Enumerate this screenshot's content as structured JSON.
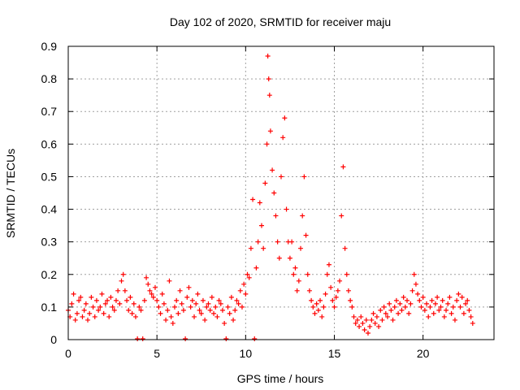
{
  "chart_data": {
    "type": "scatter",
    "title": "Day 102 of 2020, SRMTID for receiver maju",
    "xlabel": "GPS time / hours",
    "ylabel": "SRMTID / TECUs",
    "xlim": [
      0,
      24
    ],
    "ylim": [
      0,
      0.9
    ],
    "x_ticks": [
      0,
      5,
      10,
      15,
      20
    ],
    "x_tick_labels": [
      "0",
      "5",
      "10",
      "15",
      "20"
    ],
    "y_ticks": [
      0,
      0.1,
      0.2,
      0.3,
      0.4,
      0.5,
      0.6,
      0.7,
      0.8,
      0.9
    ],
    "y_tick_labels": [
      "0",
      "0.1",
      "0.2",
      "0.3",
      "0.4",
      "0.5",
      "0.6",
      "0.7",
      "0.8",
      "0.9"
    ],
    "grid": true,
    "marker": "plus",
    "color": "#ff0000",
    "series": [
      {
        "name": "SRMTID",
        "points": [
          [
            0.0,
            0.09
          ],
          [
            0.1,
            0.07
          ],
          [
            0.2,
            0.11
          ],
          [
            0.3,
            0.14
          ],
          [
            0.4,
            0.06
          ],
          [
            0.5,
            0.08
          ],
          [
            0.6,
            0.12
          ],
          [
            0.7,
            0.13
          ],
          [
            0.8,
            0.07
          ],
          [
            0.9,
            0.09
          ],
          [
            1.0,
            0.11
          ],
          [
            1.1,
            0.06
          ],
          [
            1.2,
            0.08
          ],
          [
            1.3,
            0.13
          ],
          [
            1.4,
            0.1
          ],
          [
            1.5,
            0.07
          ],
          [
            1.6,
            0.12
          ],
          [
            1.7,
            0.09
          ],
          [
            1.8,
            0.1
          ],
          [
            1.9,
            0.14
          ],
          [
            2.0,
            0.08
          ],
          [
            2.1,
            0.11
          ],
          [
            2.2,
            0.12
          ],
          [
            2.3,
            0.07
          ],
          [
            2.4,
            0.13
          ],
          [
            2.5,
            0.1
          ],
          [
            2.6,
            0.09
          ],
          [
            2.7,
            0.12
          ],
          [
            2.8,
            0.15
          ],
          [
            2.9,
            0.11
          ],
          [
            3.0,
            0.18
          ],
          [
            3.1,
            0.2
          ],
          [
            3.2,
            0.15
          ],
          [
            3.3,
            0.12
          ],
          [
            3.4,
            0.09
          ],
          [
            3.5,
            0.13
          ],
          [
            3.6,
            0.08
          ],
          [
            3.7,
            0.11
          ],
          [
            3.8,
            0.07
          ],
          [
            3.9,
            0.0
          ],
          [
            4.0,
            0.1
          ],
          [
            4.1,
            0.09
          ],
          [
            4.2,
            0.0
          ],
          [
            4.3,
            0.12
          ],
          [
            4.4,
            0.19
          ],
          [
            4.5,
            0.17
          ],
          [
            4.6,
            0.15
          ],
          [
            4.7,
            0.14
          ],
          [
            4.8,
            0.13
          ],
          [
            4.9,
            0.16
          ],
          [
            5.0,
            0.12
          ],
          [
            5.1,
            0.1
          ],
          [
            5.2,
            0.08
          ],
          [
            5.3,
            0.14
          ],
          [
            5.4,
            0.11
          ],
          [
            5.5,
            0.06
          ],
          [
            5.6,
            0.09
          ],
          [
            5.7,
            0.18
          ],
          [
            5.8,
            0.07
          ],
          [
            5.9,
            0.05
          ],
          [
            6.0,
            0.1
          ],
          [
            6.1,
            0.12
          ],
          [
            6.2,
            0.08
          ],
          [
            6.3,
            0.15
          ],
          [
            6.4,
            0.11
          ],
          [
            6.5,
            0.09
          ],
          [
            6.6,
            0.0
          ],
          [
            6.7,
            0.13
          ],
          [
            6.8,
            0.16
          ],
          [
            6.9,
            0.1
          ],
          [
            7.0,
            0.12
          ],
          [
            7.1,
            0.07
          ],
          [
            7.2,
            0.11
          ],
          [
            7.3,
            0.14
          ],
          [
            7.4,
            0.09
          ],
          [
            7.5,
            0.08
          ],
          [
            7.6,
            0.12
          ],
          [
            7.7,
            0.06
          ],
          [
            7.8,
            0.1
          ],
          [
            7.9,
            0.11
          ],
          [
            8.0,
            0.09
          ],
          [
            8.1,
            0.13
          ],
          [
            8.2,
            0.08
          ],
          [
            8.3,
            0.1
          ],
          [
            8.4,
            0.07
          ],
          [
            8.5,
            0.12
          ],
          [
            8.6,
            0.11
          ],
          [
            8.7,
            0.09
          ],
          [
            8.8,
            0.05
          ],
          [
            8.9,
            0.0
          ],
          [
            9.0,
            0.1
          ],
          [
            9.1,
            0.08
          ],
          [
            9.2,
            0.13
          ],
          [
            9.3,
            0.06
          ],
          [
            9.4,
            0.09
          ],
          [
            9.5,
            0.12
          ],
          [
            9.6,
            0.11
          ],
          [
            9.7,
            0.15
          ],
          [
            9.8,
            0.1
          ],
          [
            9.9,
            0.17
          ],
          [
            10.0,
            0.14
          ],
          [
            10.1,
            0.2
          ],
          [
            10.2,
            0.19
          ],
          [
            10.3,
            0.28
          ],
          [
            10.4,
            0.43
          ],
          [
            10.5,
            0.0
          ],
          [
            10.6,
            0.22
          ],
          [
            10.7,
            0.3
          ],
          [
            10.8,
            0.42
          ],
          [
            10.9,
            0.35
          ],
          [
            11.0,
            0.28
          ],
          [
            11.1,
            0.48
          ],
          [
            11.2,
            0.6
          ],
          [
            11.25,
            0.87
          ],
          [
            11.3,
            0.8
          ],
          [
            11.35,
            0.75
          ],
          [
            11.4,
            0.64
          ],
          [
            11.5,
            0.52
          ],
          [
            11.6,
            0.45
          ],
          [
            11.7,
            0.38
          ],
          [
            11.8,
            0.3
          ],
          [
            11.9,
            0.25
          ],
          [
            12.0,
            0.5
          ],
          [
            12.1,
            0.62
          ],
          [
            12.2,
            0.68
          ],
          [
            12.3,
            0.4
          ],
          [
            12.4,
            0.3
          ],
          [
            12.5,
            0.25
          ],
          [
            12.6,
            0.3
          ],
          [
            12.7,
            0.2
          ],
          [
            12.8,
            0.22
          ],
          [
            12.9,
            0.15
          ],
          [
            13.0,
            0.18
          ],
          [
            13.1,
            0.28
          ],
          [
            13.2,
            0.38
          ],
          [
            13.3,
            0.5
          ],
          [
            13.4,
            0.32
          ],
          [
            13.5,
            0.2
          ],
          [
            13.6,
            0.15
          ],
          [
            13.7,
            0.12
          ],
          [
            13.8,
            0.1
          ],
          [
            13.9,
            0.08
          ],
          [
            14.0,
            0.11
          ],
          [
            14.1,
            0.09
          ],
          [
            14.2,
            0.12
          ],
          [
            14.3,
            0.07
          ],
          [
            14.4,
            0.1
          ],
          [
            14.5,
            0.14
          ],
          [
            14.6,
            0.2
          ],
          [
            14.7,
            0.23
          ],
          [
            14.8,
            0.16
          ],
          [
            14.9,
            0.12
          ],
          [
            15.0,
            0.1
          ],
          [
            15.1,
            0.13
          ],
          [
            15.2,
            0.15
          ],
          [
            15.3,
            0.18
          ],
          [
            15.4,
            0.38
          ],
          [
            15.5,
            0.53
          ],
          [
            15.6,
            0.28
          ],
          [
            15.7,
            0.2
          ],
          [
            15.8,
            0.15
          ],
          [
            15.9,
            0.12
          ],
          [
            16.0,
            0.1
          ],
          [
            16.1,
            0.07
          ],
          [
            16.2,
            0.05
          ],
          [
            16.3,
            0.06
          ],
          [
            16.4,
            0.04
          ],
          [
            16.5,
            0.07
          ],
          [
            16.6,
            0.05
          ],
          [
            16.7,
            0.03
          ],
          [
            16.8,
            0.06
          ],
          [
            16.9,
            0.02
          ],
          [
            17.0,
            0.04
          ],
          [
            17.1,
            0.06
          ],
          [
            17.2,
            0.08
          ],
          [
            17.3,
            0.05
          ],
          [
            17.4,
            0.07
          ],
          [
            17.5,
            0.04
          ],
          [
            17.6,
            0.09
          ],
          [
            17.7,
            0.06
          ],
          [
            17.8,
            0.1
          ],
          [
            17.9,
            0.08
          ],
          [
            18.0,
            0.07
          ],
          [
            18.1,
            0.11
          ],
          [
            18.2,
            0.09
          ],
          [
            18.3,
            0.06
          ],
          [
            18.4,
            0.1
          ],
          [
            18.5,
            0.12
          ],
          [
            18.6,
            0.08
          ],
          [
            18.7,
            0.11
          ],
          [
            18.8,
            0.09
          ],
          [
            18.9,
            0.13
          ],
          [
            19.0,
            0.1
          ],
          [
            19.1,
            0.12
          ],
          [
            19.2,
            0.08
          ],
          [
            19.3,
            0.11
          ],
          [
            19.4,
            0.15
          ],
          [
            19.5,
            0.2
          ],
          [
            19.6,
            0.17
          ],
          [
            19.7,
            0.14
          ],
          [
            19.8,
            0.12
          ],
          [
            19.9,
            0.1
          ],
          [
            20.0,
            0.13
          ],
          [
            20.1,
            0.09
          ],
          [
            20.2,
            0.11
          ],
          [
            20.3,
            0.07
          ],
          [
            20.4,
            0.1
          ],
          [
            20.5,
            0.12
          ],
          [
            20.6,
            0.08
          ],
          [
            20.7,
            0.11
          ],
          [
            20.8,
            0.13
          ],
          [
            20.9,
            0.09
          ],
          [
            21.0,
            0.1
          ],
          [
            21.1,
            0.12
          ],
          [
            21.2,
            0.07
          ],
          [
            21.3,
            0.09
          ],
          [
            21.4,
            0.11
          ],
          [
            21.5,
            0.13
          ],
          [
            21.6,
            0.08
          ],
          [
            21.7,
            0.1
          ],
          [
            21.8,
            0.06
          ],
          [
            21.9,
            0.12
          ],
          [
            22.0,
            0.14
          ],
          [
            22.1,
            0.1
          ],
          [
            22.2,
            0.13
          ],
          [
            22.3,
            0.08
          ],
          [
            22.4,
            0.11
          ],
          [
            22.5,
            0.12
          ],
          [
            22.6,
            0.09
          ],
          [
            22.7,
            0.07
          ],
          [
            22.8,
            0.05
          ]
        ]
      }
    ]
  }
}
